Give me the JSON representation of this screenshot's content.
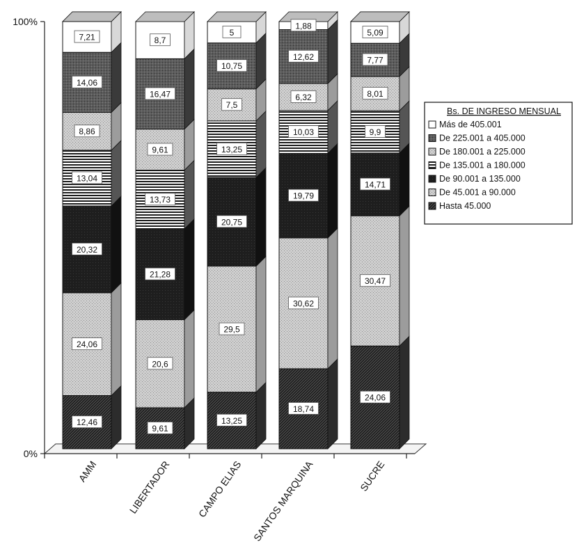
{
  "chart_data": {
    "type": "bar",
    "stacked": true,
    "normalized_percent": true,
    "three_d": true,
    "y_tick_labels": [
      "100%",
      "0%"
    ],
    "ylim": [
      0,
      100
    ],
    "categories": [
      "AMM",
      "LIBERTADOR",
      "CAMPO ELIAS",
      "SANTOS MARQUINA",
      "SUCRE"
    ],
    "legend_title": "Bs. DE INGRESO MENSUAL",
    "legend_position": "right",
    "series": [
      {
        "name": "Hasta 45.000",
        "pattern": "diagonal-dark",
        "values": [
          12.46,
          9.61,
          13.25,
          18.74,
          24.06
        ],
        "labels": [
          "12,46",
          "9,61",
          "13,25",
          "18,74",
          "24,06"
        ]
      },
      {
        "name": "De 45.001 a 90.000",
        "pattern": "light-stipple",
        "values": [
          24.06,
          20.6,
          29.5,
          30.62,
          30.47
        ],
        "labels": [
          "24,06",
          "20,6",
          "29,5",
          "30,62",
          "30,47"
        ]
      },
      {
        "name": "De 90.001 a 135.000",
        "pattern": "dark-solid",
        "values": [
          20.32,
          21.28,
          20.75,
          19.79,
          14.71
        ],
        "labels": [
          "20,32",
          "21,28",
          "20,75",
          "19,79",
          "14,71"
        ]
      },
      {
        "name": "De 135.001 a 180.000",
        "pattern": "horizontal-stripes",
        "values": [
          13.04,
          13.73,
          13.25,
          10.03,
          9.9
        ],
        "labels": [
          "13,04",
          "13,73",
          "13,25",
          "10,03",
          "9,9"
        ]
      },
      {
        "name": "De 180.001 a 225.000",
        "pattern": "light-stipple",
        "values": [
          8.86,
          9.61,
          7.5,
          6.32,
          8.01
        ],
        "labels": [
          "8,86",
          "9,61",
          "7,5",
          "6,32",
          "8,01"
        ]
      },
      {
        "name": "De 225.001 a 405.000",
        "pattern": "dark-stipple",
        "values": [
          14.06,
          16.47,
          10.75,
          12.62,
          7.77
        ],
        "labels": [
          "14,06",
          "16,47",
          "10,75",
          "12,62",
          "7,77"
        ]
      },
      {
        "name": "Más de 405.001",
        "pattern": "white",
        "values": [
          7.21,
          8.7,
          5,
          1.88,
          5.09
        ],
        "labels": [
          "7,21",
          "8,7",
          "5",
          "1,88",
          "5,09"
        ]
      }
    ]
  }
}
